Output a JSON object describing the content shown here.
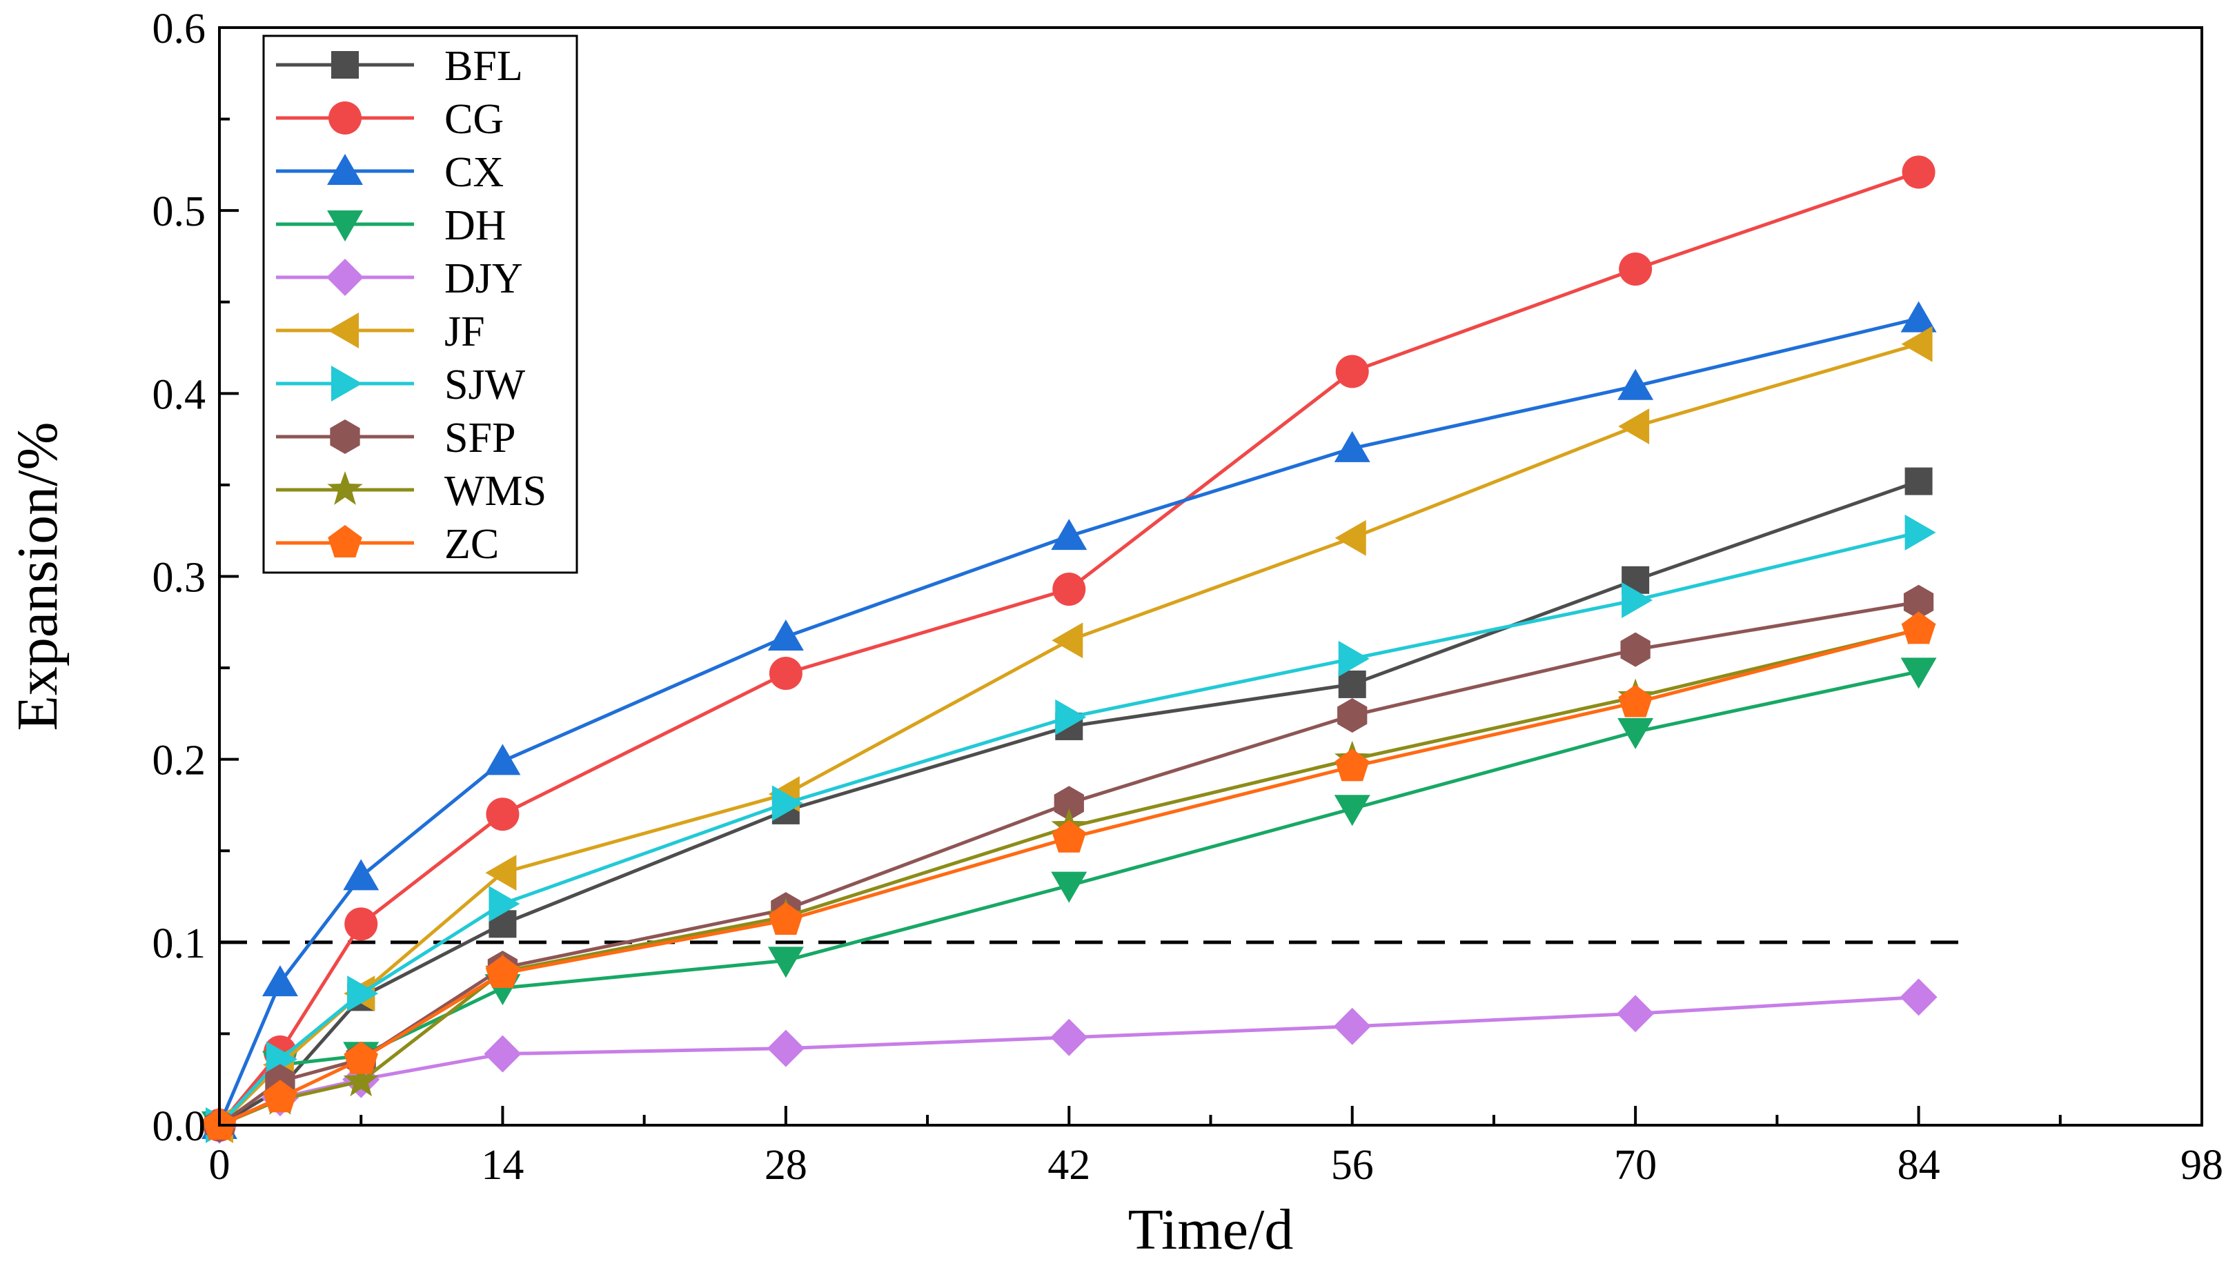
{
  "chart_data": {
    "type": "line",
    "title": "",
    "xlabel": "Time/d",
    "ylabel": "Expansion/%",
    "xlim": [
      0,
      98
    ],
    "ylim": [
      0,
      0.6
    ],
    "xticks": [
      0,
      14,
      28,
      42,
      56,
      70,
      84,
      98
    ],
    "xtick_labels": [
      "0",
      "14",
      "28",
      "42",
      "56",
      "70",
      "84",
      "98"
    ],
    "yticks": [
      0.0,
      0.1,
      0.2,
      0.3,
      0.4,
      0.5,
      0.6
    ],
    "ytick_labels": [
      "0.0",
      "0.1",
      "0.2",
      "0.3",
      "0.4",
      "0.5",
      "0.6"
    ],
    "grid": false,
    "legend_position": "top-left",
    "x": [
      0,
      3,
      7,
      14,
      28,
      42,
      56,
      70,
      84
    ],
    "reference_line": {
      "y": 0.1,
      "x_range": [
        0,
        86
      ],
      "style": "dashed"
    },
    "series": [
      {
        "name": "BFL",
        "color": "#4d4d4d",
        "marker": "square",
        "values": [
          0,
          0.02,
          0.07,
          0.11,
          0.172,
          0.218,
          0.241,
          0.298,
          0.352
        ]
      },
      {
        "name": "CG",
        "color": "#f04848",
        "marker": "circle",
        "values": [
          0,
          0.04,
          0.11,
          0.17,
          0.247,
          0.293,
          0.412,
          0.468,
          0.521
        ]
      },
      {
        "name": "CX",
        "color": "#1f6fd8",
        "marker": "triangle-up",
        "values": [
          0,
          0.078,
          0.136,
          0.199,
          0.267,
          0.322,
          0.37,
          0.404,
          0.441
        ]
      },
      {
        "name": "DH",
        "color": "#17a865",
        "marker": "triangle-down",
        "values": [
          0,
          0.033,
          0.038,
          0.075,
          0.09,
          0.131,
          0.173,
          0.215,
          0.248
        ]
      },
      {
        "name": "DJY",
        "color": "#c77ee8",
        "marker": "diamond",
        "values": [
          0,
          0.015,
          0.025,
          0.039,
          0.042,
          0.048,
          0.054,
          0.061,
          0.07
        ]
      },
      {
        "name": "JF",
        "color": "#d9a21b",
        "marker": "triangle-left",
        "values": [
          0,
          0.033,
          0.072,
          0.138,
          0.181,
          0.265,
          0.321,
          0.382,
          0.427
        ]
      },
      {
        "name": "SJW",
        "color": "#22c9d6",
        "marker": "triangle-right",
        "values": [
          0,
          0.036,
          0.072,
          0.121,
          0.176,
          0.223,
          0.255,
          0.287,
          0.324
        ]
      },
      {
        "name": "SFP",
        "color": "#8e5555",
        "marker": "hexagon",
        "values": [
          0,
          0.024,
          0.036,
          0.086,
          0.118,
          0.176,
          0.224,
          0.26,
          0.286
        ]
      },
      {
        "name": "WMS",
        "color": "#8c8c19",
        "marker": "star",
        "values": [
          0,
          0.014,
          0.024,
          0.084,
          0.114,
          0.163,
          0.2,
          0.234,
          0.271
        ]
      },
      {
        "name": "ZC",
        "color": "#ff6a13",
        "marker": "pentagon",
        "values": [
          0,
          0.015,
          0.036,
          0.083,
          0.112,
          0.157,
          0.196,
          0.231,
          0.271
        ]
      }
    ]
  }
}
